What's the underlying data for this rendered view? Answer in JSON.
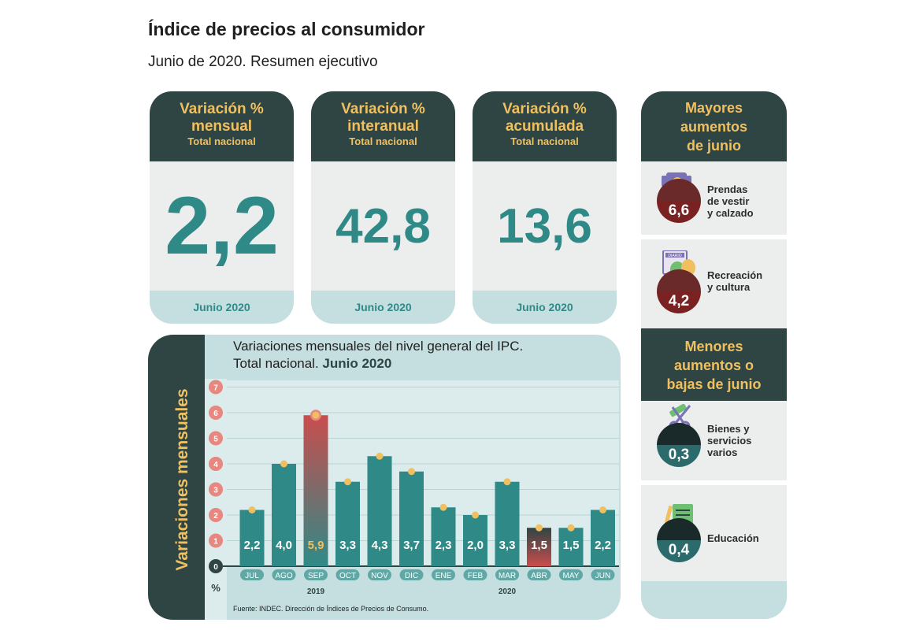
{
  "header": {
    "title": "Índice de precios al consumidor",
    "subtitle": "Junio de 2020. Resumen ejecutivo"
  },
  "cards": [
    {
      "title1": "Variación %",
      "title2": "mensual",
      "scope": "Total nacional",
      "value": "2,2",
      "period": "Junio 2020"
    },
    {
      "title1": "Variación %",
      "title2": "interanual",
      "scope": "Total nacional",
      "value": "42,8",
      "period": "Junio 2020"
    },
    {
      "title1": "Variación %",
      "title2": "acumulada",
      "scope": "Total nacional",
      "value": "13,6",
      "period": "Junio 2020"
    }
  ],
  "right_panel": {
    "highest_title": [
      "Mayores",
      "aumentos",
      "de junio"
    ],
    "highest": [
      {
        "value": "6,6",
        "label": [
          "Prendas",
          "de vestir",
          "y calzado"
        ],
        "icon": "clothing-icon"
      },
      {
        "value": "4,2",
        "label": [
          "Recreación",
          "y cultura"
        ],
        "icon": "theater-masks-icon"
      }
    ],
    "lowest_title": [
      "Menores",
      "aumentos o",
      "bajas de junio"
    ],
    "lowest": [
      {
        "value": "0,3",
        "label": [
          "Bienes y",
          "servicios",
          "varios"
        ],
        "icon": "scissors-comb-icon"
      },
      {
        "value": "0,4",
        "label": [
          "Educación"
        ],
        "icon": "notebook-icon"
      }
    ],
    "icon_badge_text": "DIARIO",
    "colors": {
      "high_top": "#6a2a2a",
      "high_bottom": "#7a2222",
      "low_top": "#1a2a2a",
      "low_bottom": "#2b6b6c"
    }
  },
  "chart_data": {
    "type": "bar",
    "title_line1": "Variaciones mensuales del nivel general del IPC.",
    "title_line2_normal": "Total nacional.",
    "title_line2_bold": "Junio 2020",
    "ylabel": "Variaciones mensuales",
    "y_unit": "%",
    "ylim": [
      0,
      7
    ],
    "yticks": [
      0,
      1,
      2,
      3,
      4,
      5,
      6,
      7
    ],
    "grid": true,
    "categories": [
      "JUL",
      "AGO",
      "SEP",
      "OCT",
      "NOV",
      "DIC",
      "ENE",
      "FEB",
      "MAR",
      "ABR",
      "MAY",
      "JUN"
    ],
    "values": [
      2.2,
      4.0,
      5.9,
      3.3,
      4.3,
      3.7,
      2.3,
      2.0,
      3.3,
      1.5,
      1.5,
      2.2
    ],
    "value_labels": [
      "2,2",
      "4,0",
      "5,9",
      "3,3",
      "4,3",
      "3,7",
      "2,3",
      "2,0",
      "3,3",
      "1,5",
      "1,5",
      "2,2"
    ],
    "highlight_max": "SEP",
    "highlight_min": "ABR",
    "year_labels": [
      {
        "label": "2019",
        "category": "SEP"
      },
      {
        "label": "2020",
        "category": "MAR"
      }
    ],
    "source": "Fuente: INDEC. Dirección de Índices de Precios de Consumo.",
    "colors": {
      "bar": "#2f8a87",
      "max_gradient": [
        "#c94d4d",
        "#2f8a87"
      ],
      "min_gradient": [
        "#2f4544",
        "#c94d4d"
      ],
      "tick_circle": "#e8877f",
      "dot": "#f0c060",
      "band": "#2f4544",
      "label_accent": "#f0c060"
    }
  }
}
